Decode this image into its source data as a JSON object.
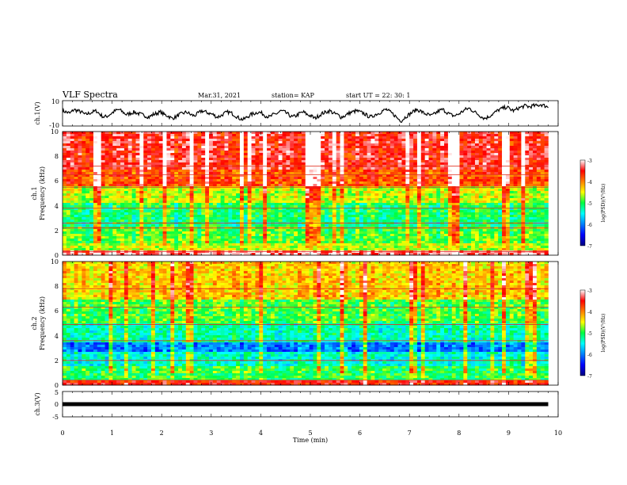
{
  "header": {
    "title": "VLF Spectra",
    "date": "Mar.31, 2021",
    "station": "station= KAP",
    "start": "start  UT  =   22: 30: 1"
  },
  "chart_data": [
    {
      "type": "line",
      "ylabel": "ch.1(V)",
      "ylim": [
        -10,
        10
      ],
      "yticks": [
        "10",
        "-10"
      ],
      "x_max": 9.8,
      "series": [
        {
          "values": [
            2,
            1,
            0,
            3,
            2,
            1,
            -1,
            0,
            1,
            2,
            -1,
            -3,
            -2,
            0,
            2,
            3,
            1,
            -1,
            0,
            1,
            0,
            -1,
            -2,
            -3,
            -1,
            0,
            1,
            -1,
            -2,
            -4,
            -3,
            -1,
            0,
            1,
            -1,
            -2,
            0,
            2,
            1,
            0,
            -1,
            -3,
            -2,
            0,
            1,
            0,
            -2,
            -4,
            -5,
            -3,
            -1,
            0,
            1,
            0,
            -2,
            -3,
            -1,
            0,
            2,
            1,
            -1,
            -3,
            -2,
            0,
            1,
            -1,
            -2,
            -4,
            -2,
            0,
            1,
            2,
            0,
            -1,
            -3,
            -2,
            0,
            1,
            2,
            1,
            0,
            -2,
            -3,
            -1,
            0,
            2,
            3,
            1,
            -1,
            -4,
            -6,
            -3,
            -1,
            1,
            3,
            2,
            0,
            -1,
            -2,
            0,
            2,
            3,
            1,
            -1,
            -2,
            -1,
            1,
            3,
            4,
            2,
            0,
            -2,
            -4,
            -3,
            -1,
            1,
            3,
            4,
            5,
            3,
            2,
            4,
            5,
            6,
            5,
            6,
            6,
            7,
            6,
            5
          ]
        }
      ]
    },
    {
      "type": "heatmap",
      "ylabel_top": "ch.1",
      "ylabel": "Frequency (kHz)",
      "ylim": [
        0,
        10
      ],
      "yticks": [
        "0",
        "2",
        "4",
        "6",
        "8",
        "10"
      ],
      "colorbar": {
        "label": "log(PSD)(V²/Hz)",
        "ticks": [
          "-3",
          "-4",
          "-5",
          "-6",
          "-7"
        ],
        "range": [
          -7,
          -3
        ]
      },
      "bands": [
        {
          "f0": 0.0,
          "f1": 0.4,
          "level": -3.3
        },
        {
          "f0": 0.4,
          "f1": 1.0,
          "level": -4.6
        },
        {
          "f0": 1.0,
          "f1": 2.4,
          "level": -4.9
        },
        {
          "f0": 2.4,
          "f1": 3.0,
          "level": -5.2
        },
        {
          "f0": 3.0,
          "f1": 4.2,
          "level": -5.1
        },
        {
          "f0": 4.2,
          "f1": 5.5,
          "level": -4.6
        },
        {
          "f0": 5.5,
          "f1": 7.0,
          "level": -3.8
        },
        {
          "f0": 7.0,
          "f1": 10.0,
          "level": -3.5
        }
      ],
      "lines_khz": [
        0.3,
        2.2,
        2.6,
        3.8,
        5.5,
        6.5,
        7.2
      ]
    },
    {
      "type": "heatmap",
      "ylabel_top": "ch.2",
      "ylabel": "Frequency (kHz)",
      "ylim": [
        0,
        10
      ],
      "yticks": [
        "0",
        "2",
        "4",
        "6",
        "8",
        "10"
      ],
      "colorbar": {
        "label": "log(PSD)(V²/Hz)",
        "ticks": [
          "-3",
          "-4",
          "-5",
          "-6",
          "-7"
        ],
        "range": [
          -7,
          -3
        ]
      },
      "bands": [
        {
          "f0": 0.0,
          "f1": 0.4,
          "level": -3.6
        },
        {
          "f0": 0.4,
          "f1": 1.6,
          "level": -5.0
        },
        {
          "f0": 1.6,
          "f1": 2.6,
          "level": -5.4
        },
        {
          "f0": 2.6,
          "f1": 3.4,
          "level": -6.0
        },
        {
          "f0": 3.4,
          "f1": 5.0,
          "level": -5.3
        },
        {
          "f0": 5.0,
          "f1": 7.0,
          "level": -4.9
        },
        {
          "f0": 7.0,
          "f1": 10.0,
          "level": -4.3
        }
      ],
      "lines_khz": [
        0.4,
        2.0,
        3.6,
        4.9,
        6.3,
        7.8
      ]
    },
    {
      "type": "line",
      "ylabel": "ch.3(V)",
      "ylim": [
        -5,
        5
      ],
      "yticks": [
        "5",
        "0",
        "-5"
      ],
      "series": [
        {
          "values": [
            0,
            0
          ]
        }
      ],
      "x_max": 9.8
    }
  ],
  "x_axis": {
    "label": "Time (min)",
    "ticks": [
      "0",
      "1",
      "2",
      "3",
      "4",
      "5",
      "6",
      "7",
      "8",
      "9",
      "10"
    ],
    "xlim": [
      0,
      10
    ]
  }
}
